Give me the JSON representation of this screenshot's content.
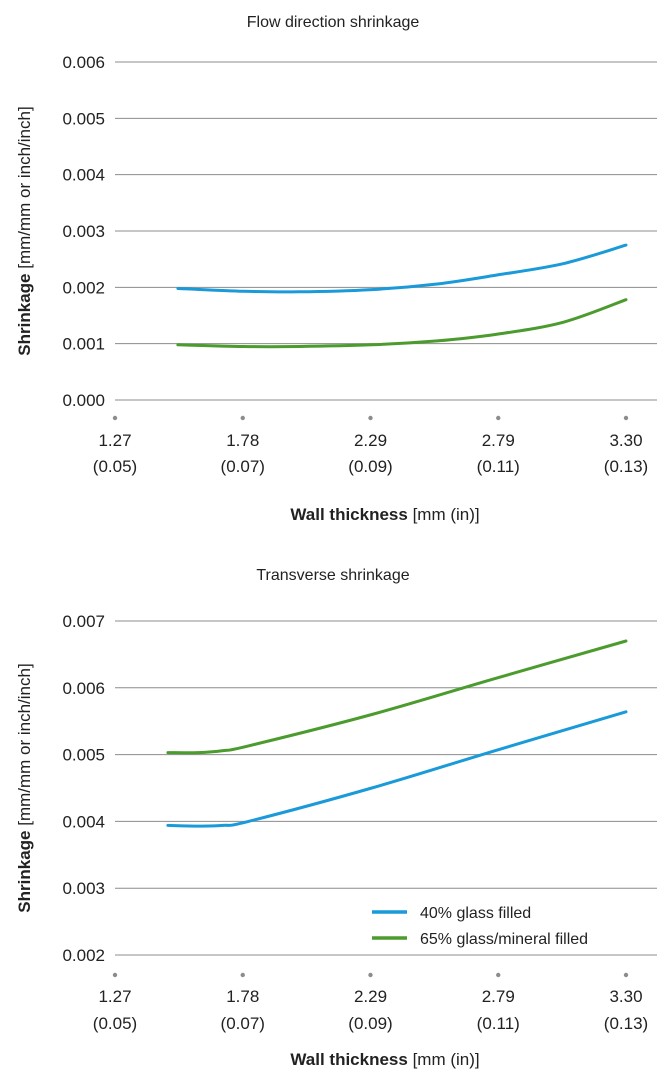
{
  "chart_data": [
    {
      "type": "line",
      "title": "Flow direction shrinkage",
      "ylabel_bold": "Shrinkage",
      "ylabel_rest": " [mm/mm or inch/inch]",
      "xlabel_bold": "Wall thickness",
      "xlabel_rest": " [mm (in)]",
      "xlim": [
        1.27,
        3.3
      ],
      "ylim": [
        0.0,
        0.006
      ],
      "x_ticks": [
        {
          "mm": "1.27",
          "in": "(0.05)"
        },
        {
          "mm": "1.78",
          "in": "(0.07)"
        },
        {
          "mm": "2.29",
          "in": "(0.09)"
        },
        {
          "mm": "2.79",
          "in": "(0.11)"
        },
        {
          "mm": "3.30",
          "in": "(0.13)"
        }
      ],
      "y_ticks": [
        "0.000",
        "0.001",
        "0.002",
        "0.003",
        "0.004",
        "0.005",
        "0.006"
      ],
      "grid": true,
      "legend": false,
      "series": [
        {
          "color": "#1a9ad9",
          "x": [
            1.52,
            1.78,
            2.0,
            2.29,
            2.55,
            2.79,
            3.05,
            3.3
          ],
          "y": [
            0.00198,
            0.00193,
            0.00192,
            0.00196,
            0.00206,
            0.00222,
            0.00242,
            0.00275
          ]
        },
        {
          "color": "#4b9b2e",
          "x": [
            1.52,
            1.78,
            2.0,
            2.29,
            2.55,
            2.79,
            3.05,
            3.3
          ],
          "y": [
            0.00098,
            0.00095,
            0.00095,
            0.00098,
            0.00105,
            0.00117,
            0.00138,
            0.00178
          ]
        }
      ]
    },
    {
      "type": "line",
      "title": "Transverse shrinkage",
      "ylabel_bold": "Shrinkage",
      "ylabel_rest": " [mm/mm or inch/inch]",
      "xlabel_bold": "Wall thickness",
      "xlabel_rest": " [mm (in)]",
      "xlim": [
        1.27,
        3.3
      ],
      "ylim": [
        0.002,
        0.007
      ],
      "x_ticks": [
        {
          "mm": "1.27",
          "in": "(0.05)"
        },
        {
          "mm": "1.78",
          "in": "(0.07)"
        },
        {
          "mm": "2.29",
          "in": "(0.09)"
        },
        {
          "mm": "2.79",
          "in": "(0.11)"
        },
        {
          "mm": "3.30",
          "in": "(0.13)"
        }
      ],
      "y_ticks": [
        "0.002",
        "0.003",
        "0.004",
        "0.005",
        "0.006",
        "0.007"
      ],
      "grid": true,
      "legend": "bottom-right",
      "series": [
        {
          "name": "40% glass filled",
          "color": "#1a9ad9",
          "x": [
            1.48,
            1.6,
            1.7,
            1.8,
            2.29,
            2.79,
            3.3
          ],
          "y": [
            0.00394,
            0.00393,
            0.00394,
            0.004,
            0.0045,
            0.00507,
            0.00564
          ]
        },
        {
          "name": "65% glass/mineral filled",
          "color": "#4b9b2e",
          "x": [
            1.48,
            1.6,
            1.7,
            1.8,
            2.29,
            2.79,
            3.3
          ],
          "y": [
            0.00503,
            0.00503,
            0.00506,
            0.00513,
            0.0056,
            0.00615,
            0.0067
          ]
        }
      ]
    }
  ]
}
